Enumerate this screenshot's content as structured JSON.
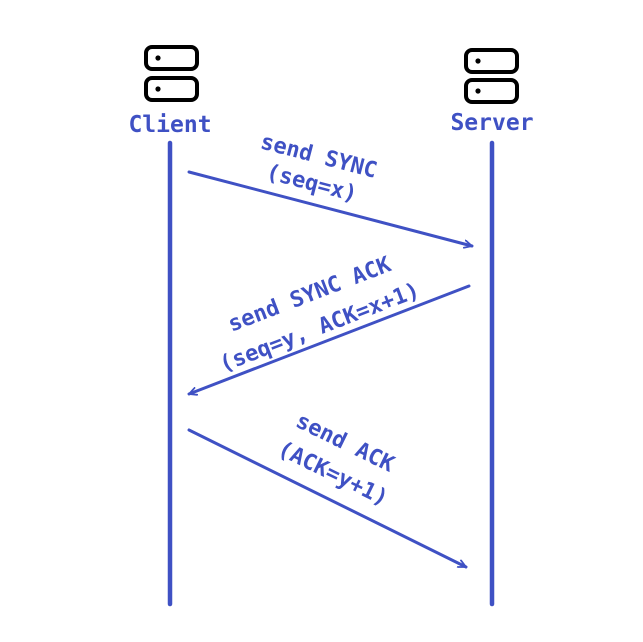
{
  "colors": {
    "accent": "#3f51c4",
    "icon": "#000000",
    "background": "#ffffff"
  },
  "participants": [
    {
      "label": "Client",
      "icon": "server-icon"
    },
    {
      "label": "Server",
      "icon": "server-icon"
    }
  ],
  "messages": [
    {
      "from": "Client",
      "to": "Server",
      "line1": "send SYNC",
      "line2": "(seq=x)"
    },
    {
      "from": "Server",
      "to": "Client",
      "line1": "send SYNC ACK",
      "line2": "(seq=y, ACK=x+1)"
    },
    {
      "from": "Client",
      "to": "Server",
      "line1": "send ACK",
      "line2": "(ACK=y+1)"
    }
  ]
}
